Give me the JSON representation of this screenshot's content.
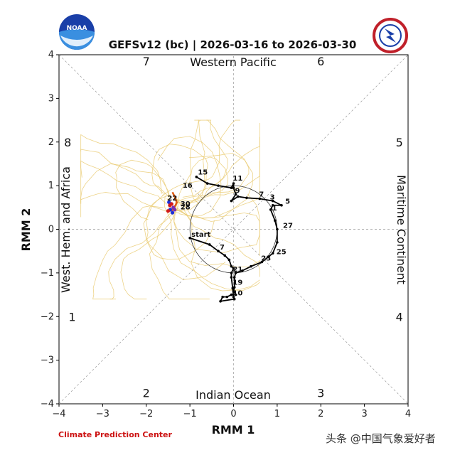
{
  "header": {
    "title": "GEFSv12 (bc) | 2026-03-16 to 2026-03-30",
    "left_logo_text": "NOAA",
    "right_logo_text": "NATIONAL WEATHER SERVICE"
  },
  "footer": {
    "credit": "Climate Prediction Center",
    "credit_color": "#cc1111",
    "watermark": "头条 @中国气象爱好者"
  },
  "chart_data": {
    "type": "line",
    "title": "GEFSv12 (bc) | 2026-03-16 to 2026-03-30",
    "xlabel": "RMM 1",
    "ylabel": "RMM 2",
    "xlim": [
      -4,
      4
    ],
    "ylim": [
      -4,
      4
    ],
    "xticks": [
      "−4",
      "−3",
      "−2",
      "−1",
      "0",
      "1",
      "2",
      "3",
      "4"
    ],
    "yticks": [
      "−4",
      "−3",
      "−2",
      "−1",
      "0",
      "1",
      "2",
      "3",
      "4"
    ],
    "grid": false,
    "unit_circle_radius": 1,
    "phases": [
      {
        "label": "1",
        "x": -3.7,
        "y": -2.0
      },
      {
        "label": "2",
        "x": -2.0,
        "y": -3.75
      },
      {
        "label": "3",
        "x": 2.0,
        "y": -3.75
      },
      {
        "label": "4",
        "x": 3.8,
        "y": -2.0
      },
      {
        "label": "5",
        "x": 3.8,
        "y": 2.0
      },
      {
        "label": "6",
        "x": 2.0,
        "y": 3.85
      },
      {
        "label": "7",
        "x": -2.0,
        "y": 3.85
      },
      {
        "label": "8",
        "x": -3.8,
        "y": 2.0
      }
    ],
    "regions": {
      "top": "Western Pacific",
      "bottom": "Indian Ocean",
      "left": "West. Hem. and Africa",
      "right": "Maritime Continent"
    },
    "observed": {
      "color": "#000000",
      "start_label": "start",
      "points": [
        [
          -1.0,
          -0.2
        ],
        [
          -0.55,
          -0.35
        ],
        [
          -0.35,
          -0.5
        ],
        [
          -0.2,
          -0.6
        ],
        [
          -0.1,
          -0.7
        ],
        [
          -0.05,
          -0.85
        ],
        [
          0.0,
          -0.9
        ],
        [
          -0.05,
          -1.0
        ],
        [
          -0.05,
          -1.1
        ],
        [
          -0.02,
          -1.35
        ],
        [
          0.0,
          -1.55
        ],
        [
          0.02,
          -1.6
        ],
        [
          -0.3,
          -1.65
        ],
        [
          -0.25,
          -1.55
        ],
        [
          -0.15,
          -1.55
        ],
        [
          -0.05,
          -1.5
        ],
        [
          0.05,
          -1.5
        ],
        [
          0.0,
          -1.42
        ],
        [
          0.02,
          -1.33
        ],
        [
          0.02,
          -1.1
        ],
        [
          0.05,
          -1.0
        ],
        [
          0.2,
          -0.95
        ],
        [
          0.4,
          -0.85
        ],
        [
          0.65,
          -0.75
        ],
        [
          0.9,
          -0.55
        ],
        [
          1.0,
          -0.3
        ],
        [
          1.0,
          0.0
        ],
        [
          0.95,
          0.2
        ],
        [
          0.85,
          0.45
        ],
        [
          0.9,
          0.55
        ],
        [
          1.1,
          0.55
        ],
        [
          0.9,
          0.65
        ],
        [
          0.6,
          0.7
        ],
        [
          0.3,
          0.72
        ],
        [
          0.1,
          0.75
        ],
        [
          -0.05,
          0.65
        ],
        [
          0.05,
          0.8
        ],
        [
          0.0,
          0.95
        ],
        [
          0.0,
          1.05
        ],
        [
          -0.05,
          0.95
        ],
        [
          -0.35,
          1.0
        ],
        [
          -0.6,
          1.05
        ],
        [
          -0.85,
          1.2
        ]
      ],
      "day_labels": [
        {
          "text": "start",
          "x": -1.0,
          "y": -0.2
        },
        {
          "text": "7",
          "x": -0.35,
          "y": -0.5
        },
        {
          "text": "21",
          "x": -0.05,
          "y": -1.0
        },
        {
          "text": "19",
          "x": -0.05,
          "y": -1.3
        },
        {
          "text": "10",
          "x": -0.05,
          "y": -1.55
        },
        {
          "text": "23",
          "x": 0.6,
          "y": -0.75
        },
        {
          "text": "25",
          "x": 0.95,
          "y": -0.6
        },
        {
          "text": "27",
          "x": 1.1,
          "y": 0.0
        },
        {
          "text": "1",
          "x": 0.85,
          "y": 0.4
        },
        {
          "text": "3",
          "x": 0.8,
          "y": 0.65
        },
        {
          "text": "5",
          "x": 1.15,
          "y": 0.55
        },
        {
          "text": "7",
          "x": 0.55,
          "y": 0.72
        },
        {
          "text": "9",
          "x": 0.0,
          "y": 0.8
        },
        {
          "text": "11",
          "x": -0.05,
          "y": 1.08
        },
        {
          "text": "15",
          "x": -0.85,
          "y": 1.22
        }
      ]
    },
    "ensemble_mean": {
      "color": "#e05a10",
      "points": [
        [
          -1.4,
          0.85
        ],
        [
          -1.35,
          0.75
        ],
        [
          -1.3,
          0.62
        ],
        [
          -1.33,
          0.55
        ],
        [
          -1.38,
          0.48
        ],
        [
          -1.42,
          0.42
        ]
      ],
      "day_labels": [
        {
          "text": "16",
          "x": -1.2,
          "y": 0.92
        },
        {
          "text": "22",
          "x": -1.55,
          "y": 0.63
        },
        {
          "text": "30",
          "x": -1.25,
          "y": 0.5
        },
        {
          "text": "28",
          "x": -1.25,
          "y": 0.42
        }
      ]
    },
    "member_markers": {
      "colors": [
        "#1e2fd8",
        "#d21a1a",
        "#7a2fb0"
      ],
      "points": [
        [
          -1.48,
          0.62
        ],
        [
          -1.42,
          0.58
        ],
        [
          -1.38,
          0.5
        ],
        [
          -1.45,
          0.45
        ],
        [
          -1.5,
          0.42
        ],
        [
          -1.35,
          0.45
        ],
        [
          -1.4,
          0.38
        ],
        [
          -1.46,
          0.55
        ]
      ]
    },
    "ensemble_members": {
      "color": "#e8c86a",
      "count": 30
    }
  }
}
